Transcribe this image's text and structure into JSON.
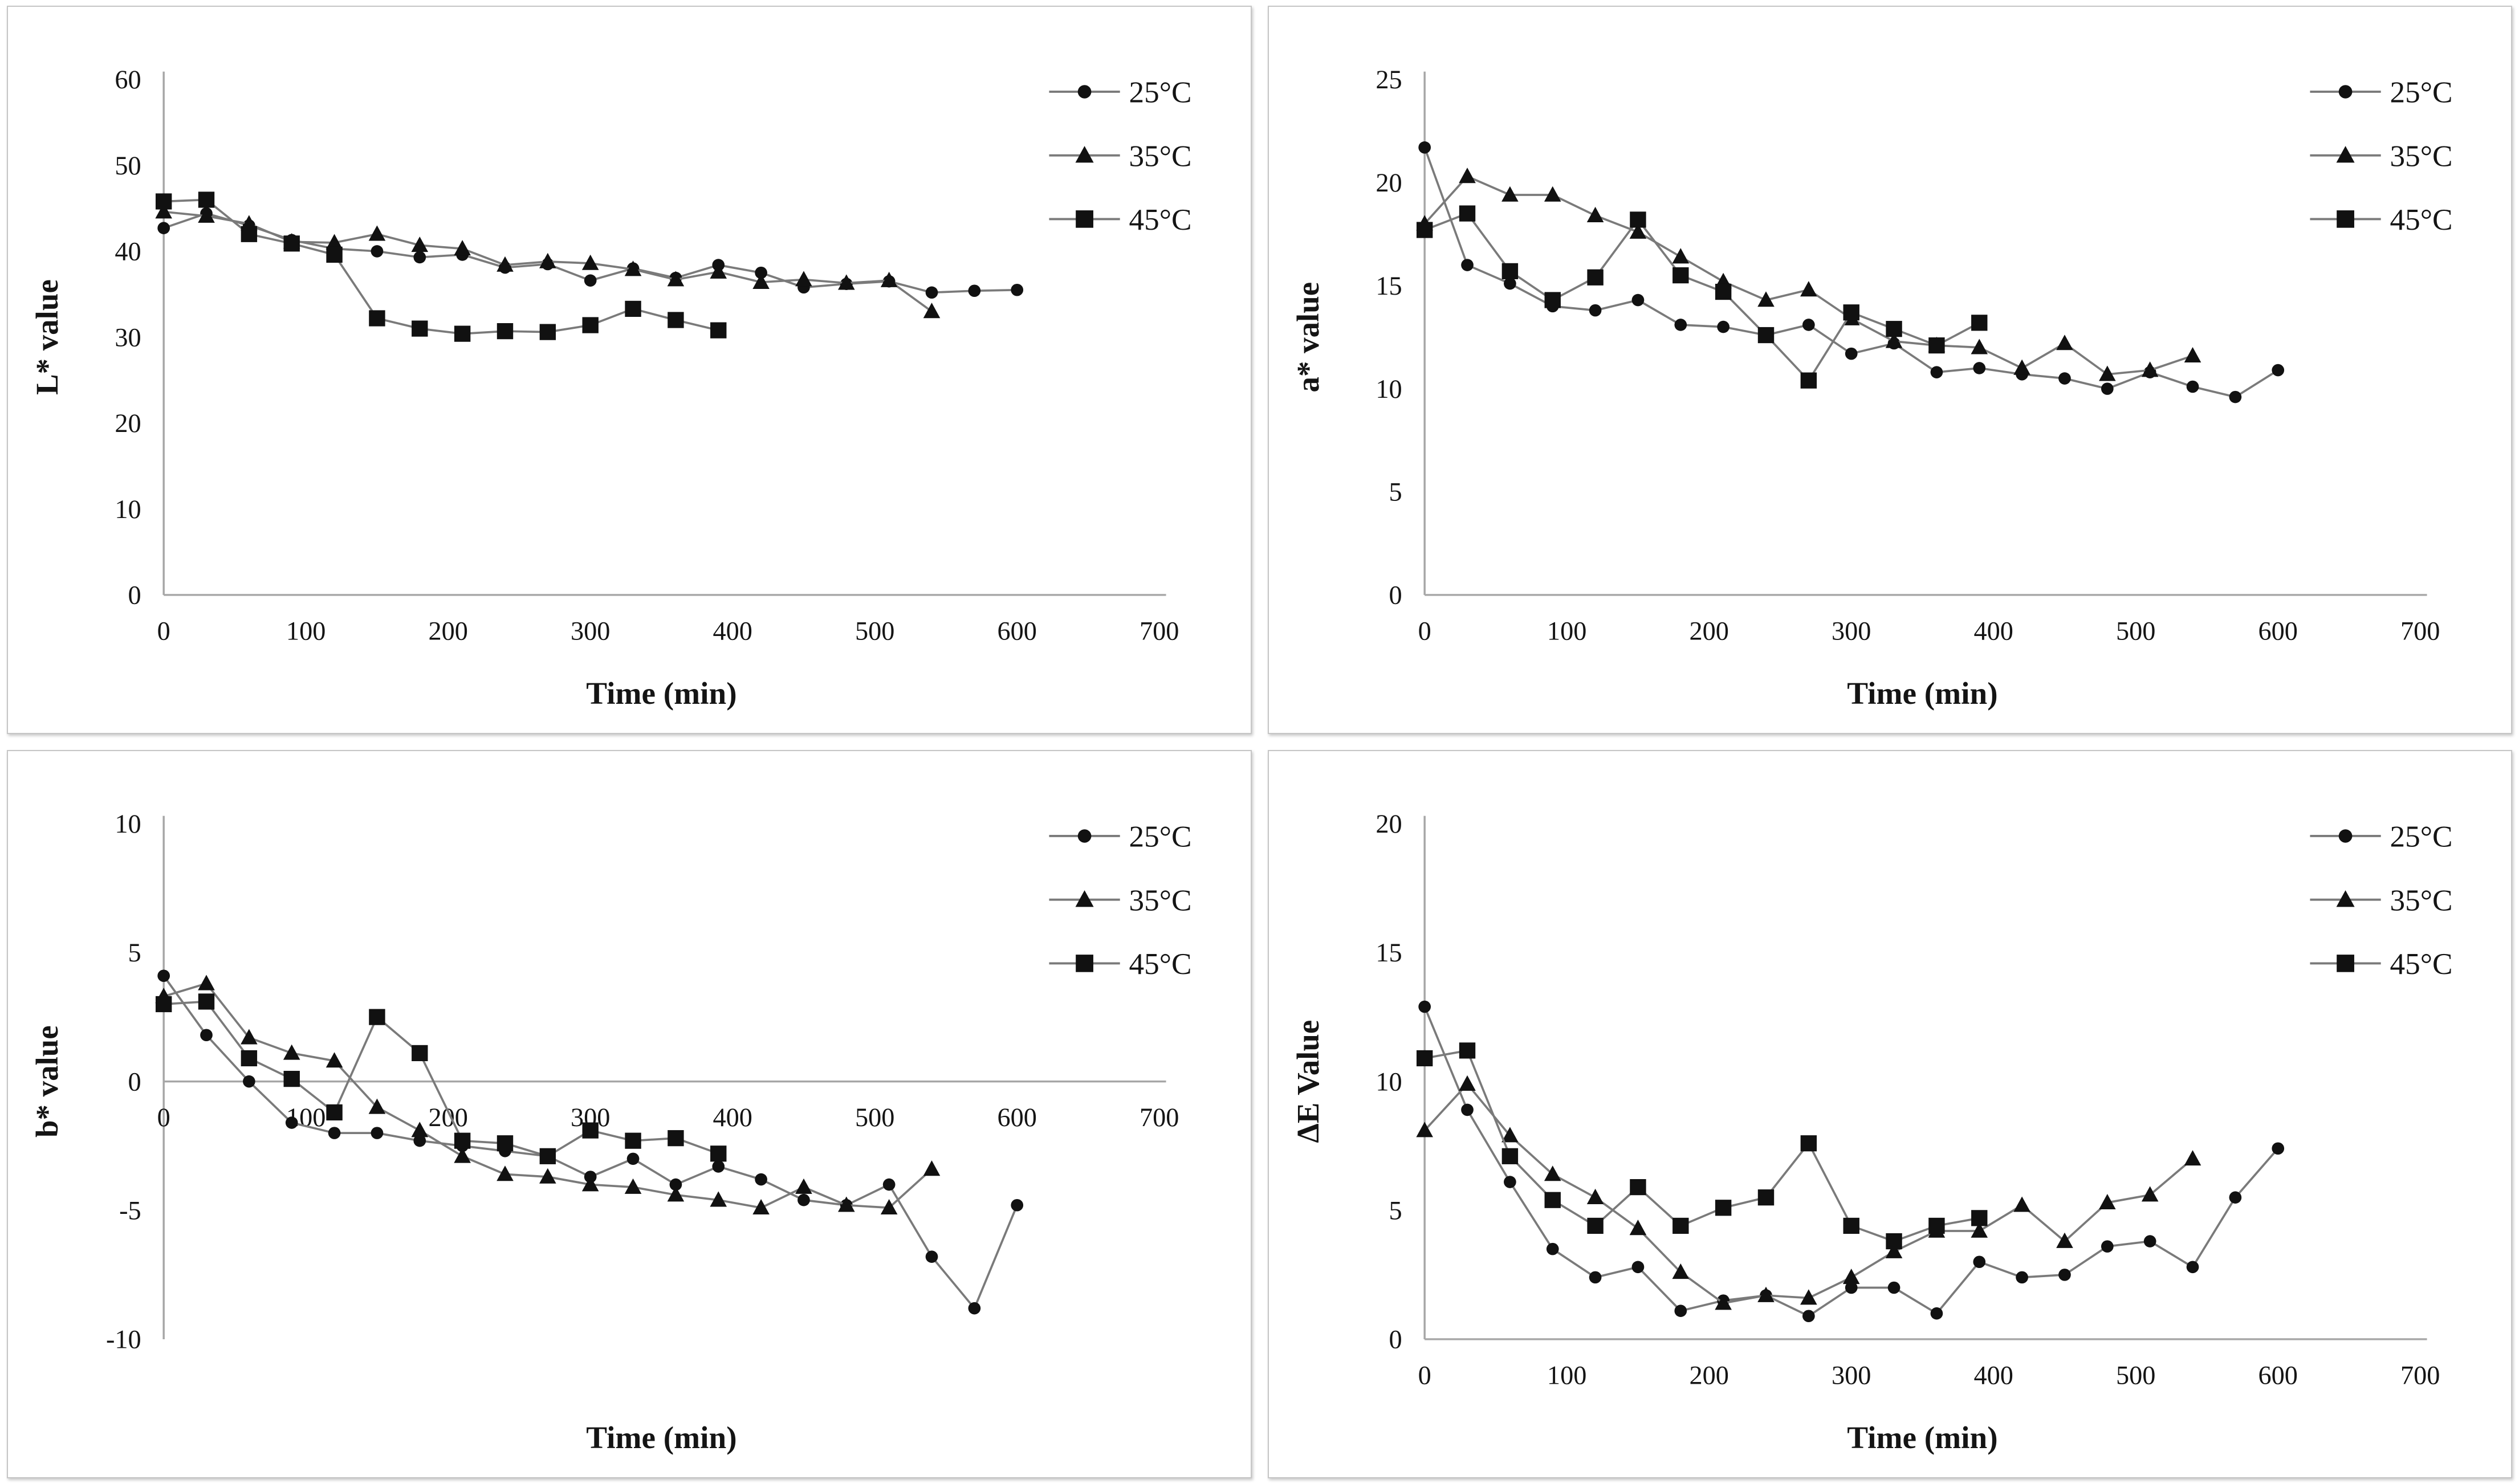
{
  "figure": {
    "description": "Four line charts of colour parameters versus time at three storage temperatures",
    "xlabel": "Time (min)"
  },
  "colors": {
    "marker": "#111111",
    "series_line": "#7a7a7a",
    "axis_line": "#a6a6a6",
    "text": "#141414",
    "panel_border": "#c6c6c6",
    "background": "#ffffff"
  },
  "legend": {
    "items": [
      {
        "label": "25°C",
        "marker": "circle"
      },
      {
        "label": "35°C",
        "marker": "triangle"
      },
      {
        "label": "45°C",
        "marker": "square"
      }
    ]
  },
  "chart_data": [
    {
      "id": "l-value",
      "type": "line",
      "title": "",
      "xlabel": "Time (min)",
      "ylabel": "L* value",
      "xlim": [
        0,
        700
      ],
      "ylim": [
        0,
        60
      ],
      "xticks": [
        0,
        100,
        200,
        300,
        400,
        500,
        600,
        700
      ],
      "yticks": [
        0,
        10,
        20,
        30,
        40,
        50,
        60
      ],
      "x_axis_at": 0,
      "grid": false,
      "legend_position": "top-right",
      "series": [
        {
          "name": "25°C",
          "marker": "circle",
          "x": [
            0,
            30,
            60,
            90,
            120,
            150,
            180,
            210,
            240,
            270,
            300,
            330,
            360,
            390,
            420,
            450,
            480,
            510,
            540,
            570,
            600
          ],
          "y": [
            42.7,
            44.4,
            43.0,
            41.3,
            40.3,
            40.0,
            39.3,
            39.6,
            38.1,
            38.5,
            36.6,
            38.0,
            36.9,
            38.4,
            37.5,
            35.8,
            36.2,
            36.5,
            35.2,
            35.4,
            35.5
          ]
        },
        {
          "name": "35°C",
          "marker": "triangle",
          "x": [
            0,
            30,
            60,
            90,
            120,
            150,
            180,
            210,
            240,
            270,
            300,
            330,
            360,
            390,
            420,
            450,
            480,
            510,
            540
          ],
          "y": [
            44.6,
            44.1,
            43.2,
            41.1,
            41.0,
            42.0,
            40.7,
            40.3,
            38.4,
            38.8,
            38.6,
            37.9,
            36.7,
            37.6,
            36.4,
            36.7,
            36.3,
            36.6,
            33.0
          ]
        },
        {
          "name": "45°C",
          "marker": "square",
          "x": [
            0,
            30,
            60,
            90,
            120,
            150,
            180,
            210,
            240,
            270,
            300,
            330,
            360,
            390
          ],
          "y": [
            45.8,
            46.0,
            42.0,
            40.9,
            39.6,
            32.2,
            31.0,
            30.4,
            30.7,
            30.6,
            31.4,
            33.3,
            32.0,
            30.8
          ]
        }
      ]
    },
    {
      "id": "a-value",
      "type": "line",
      "title": "",
      "xlabel": "Time (min)",
      "ylabel": "a*  value",
      "xlim": [
        0,
        700
      ],
      "ylim": [
        0,
        25
      ],
      "xticks": [
        0,
        100,
        200,
        300,
        400,
        500,
        600,
        700
      ],
      "yticks": [
        0,
        5,
        10,
        15,
        20,
        25
      ],
      "x_axis_at": 0,
      "grid": false,
      "legend_position": "top-right",
      "series": [
        {
          "name": "25°C",
          "marker": "circle",
          "x": [
            0,
            30,
            60,
            90,
            120,
            150,
            180,
            210,
            240,
            270,
            300,
            330,
            360,
            390,
            420,
            450,
            480,
            510,
            540,
            570,
            600
          ],
          "y": [
            21.7,
            16.0,
            15.1,
            14.0,
            13.8,
            14.3,
            13.1,
            13.0,
            12.6,
            13.1,
            11.7,
            12.2,
            10.8,
            11.0,
            10.7,
            10.5,
            10.0,
            10.8,
            10.1,
            9.6,
            10.9
          ]
        },
        {
          "name": "35°C",
          "marker": "triangle",
          "x": [
            0,
            30,
            60,
            90,
            120,
            150,
            180,
            210,
            240,
            270,
            300,
            330,
            360,
            390,
            420,
            450,
            480,
            510,
            540
          ],
          "y": [
            18.0,
            20.3,
            19.4,
            19.4,
            18.4,
            17.6,
            16.4,
            15.2,
            14.3,
            14.8,
            13.4,
            12.3,
            12.1,
            12.0,
            11.0,
            12.2,
            10.7,
            10.9,
            11.6
          ]
        },
        {
          "name": "45°C",
          "marker": "square",
          "x": [
            0,
            30,
            60,
            90,
            120,
            150,
            180,
            210,
            240,
            270,
            300,
            330,
            360,
            390
          ],
          "y": [
            17.7,
            18.5,
            15.7,
            14.3,
            15.4,
            18.2,
            15.5,
            14.7,
            12.6,
            10.4,
            13.7,
            12.9,
            12.1,
            13.2
          ]
        }
      ]
    },
    {
      "id": "b-value",
      "type": "line",
      "title": "",
      "xlabel": "Time (min)",
      "ylabel": "b* value",
      "xlim": [
        0,
        700
      ],
      "ylim": [
        -10,
        10
      ],
      "xticks": [
        0,
        100,
        200,
        300,
        400,
        500,
        600,
        700
      ],
      "yticks": [
        -10,
        -5,
        0,
        5,
        10
      ],
      "x_axis_at": 0,
      "grid": false,
      "legend_position": "top-right",
      "series": [
        {
          "name": "25°C",
          "marker": "circle",
          "x": [
            0,
            30,
            60,
            90,
            120,
            150,
            180,
            210,
            240,
            270,
            300,
            330,
            360,
            390,
            420,
            450,
            480,
            510,
            540,
            570,
            600
          ],
          "y": [
            4.1,
            1.8,
            0.0,
            -1.6,
            -2.0,
            -2.0,
            -2.3,
            -2.5,
            -2.7,
            -2.9,
            -3.7,
            -3.0,
            -4.0,
            -3.3,
            -3.8,
            -4.6,
            -4.8,
            -4.0,
            -6.8,
            -8.8,
            -4.8
          ]
        },
        {
          "name": "35°C",
          "marker": "triangle",
          "x": [
            0,
            30,
            60,
            90,
            120,
            150,
            180,
            210,
            240,
            270,
            300,
            330,
            360,
            390,
            420,
            450,
            480,
            510,
            540
          ],
          "y": [
            3.3,
            3.8,
            1.7,
            1.1,
            0.8,
            -1.0,
            -1.9,
            -2.9,
            -3.6,
            -3.7,
            -4.0,
            -4.1,
            -4.4,
            -4.6,
            -4.9,
            -4.1,
            -4.8,
            -4.9,
            -3.4
          ]
        },
        {
          "name": "45°C",
          "marker": "square",
          "x": [
            0,
            30,
            60,
            90,
            120,
            150,
            180,
            210,
            240,
            270,
            300,
            330,
            360,
            390
          ],
          "y": [
            3.0,
            3.1,
            0.9,
            0.1,
            -1.2,
            2.5,
            1.1,
            -2.3,
            -2.4,
            -2.9,
            -1.9,
            -2.3,
            -2.2,
            -2.8
          ]
        }
      ]
    },
    {
      "id": "delta-e",
      "type": "line",
      "title": "",
      "xlabel": "Time (min)",
      "ylabel": "ΔE Value",
      "xlim": [
        0,
        700
      ],
      "ylim": [
        0,
        20
      ],
      "xticks": [
        0,
        100,
        200,
        300,
        400,
        500,
        600,
        700
      ],
      "yticks": [
        0,
        5,
        10,
        15,
        20
      ],
      "x_axis_at": 0,
      "grid": false,
      "legend_position": "top-right",
      "series": [
        {
          "name": "25°C",
          "marker": "circle",
          "x": [
            0,
            30,
            60,
            90,
            120,
            150,
            180,
            210,
            240,
            270,
            300,
            330,
            360,
            390,
            420,
            450,
            480,
            510,
            540,
            570,
            600
          ],
          "y": [
            12.9,
            8.9,
            6.1,
            3.5,
            2.4,
            2.8,
            1.1,
            1.5,
            1.7,
            0.9,
            2.0,
            2.0,
            1.0,
            3.0,
            2.4,
            2.5,
            3.6,
            3.8,
            2.8,
            5.5,
            7.4
          ]
        },
        {
          "name": "35°C",
          "marker": "triangle",
          "x": [
            0,
            30,
            60,
            90,
            120,
            150,
            180,
            210,
            240,
            270,
            300,
            330,
            360,
            390,
            420,
            450,
            480,
            510,
            540
          ],
          "y": [
            8.1,
            9.9,
            7.9,
            6.4,
            5.5,
            4.3,
            2.6,
            1.4,
            1.7,
            1.6,
            2.4,
            3.4,
            4.2,
            4.2,
            5.2,
            3.8,
            5.3,
            5.6,
            7.0
          ]
        },
        {
          "name": "45°C",
          "marker": "square",
          "x": [
            0,
            30,
            60,
            90,
            120,
            150,
            180,
            210,
            240,
            270,
            300,
            330,
            360,
            390
          ],
          "y": [
            10.9,
            11.2,
            7.1,
            5.4,
            4.4,
            5.9,
            4.4,
            5.1,
            5.5,
            7.6,
            4.4,
            3.8,
            4.4,
            4.7
          ]
        }
      ]
    }
  ]
}
